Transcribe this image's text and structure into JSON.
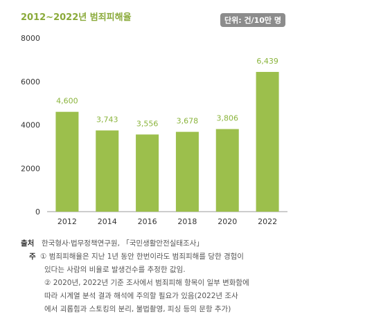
{
  "title": "2012~2022년 범죄피해율",
  "unit_badge": "단위: 건/10만 명",
  "chart_data": {
    "type": "bar",
    "categories": [
      "2012",
      "2014",
      "2016",
      "2018",
      "2020",
      "2022"
    ],
    "values": [
      4600,
      3743,
      3556,
      3678,
      3806,
      6439
    ],
    "value_labels": [
      "4,600",
      "3,743",
      "3,556",
      "3,678",
      "3,806",
      "6,439"
    ],
    "yticks": [
      0,
      2000,
      4000,
      6000,
      8000
    ],
    "ylim": [
      0,
      8000
    ],
    "grid": false,
    "bar_color": "#9cbf4c"
  },
  "notes": {
    "source_label": "출처",
    "source_text": "한국형사·법무정책연구원, 「국민생활안전실태조사」",
    "note_label": "주",
    "note1_line1": "① 범죄피해율은 지난 1년 동안 한번이라도 범죄피해를 당한 경험이",
    "note1_line2": "있다는 사람의 비율로 발생건수를 추정한 값임.",
    "note2_line1": "② 2020년, 2022년 기준 조사에서 범죄피해 항목이 일부 변화함에",
    "note2_line2": "따라 시계열 분석 결과 해석에 주의할 필요가 있음(2022년 조사",
    "note2_line3": "에서 괴롭힘과 스토킹의 분리, 불법촬영, 피싱 등의 문항 추가)"
  }
}
